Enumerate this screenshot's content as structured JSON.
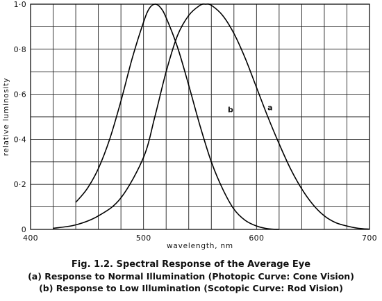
{
  "chart_data": {
    "type": "line",
    "xlabel": "wavelength, nm",
    "ylabel": "relative luminosity",
    "xlim": [
      400,
      700
    ],
    "ylim": [
      0,
      1.0
    ],
    "x_ticks": [
      400,
      500,
      600,
      700
    ],
    "x_tick_labels": [
      "400",
      "500",
      "600",
      "700"
    ],
    "y_ticks": [
      0,
      0.2,
      0.4,
      0.6,
      0.8,
      1.0
    ],
    "y_tick_labels": [
      "0",
      "0·2",
      "0·4",
      "0·6",
      "0·8",
      "1·0"
    ],
    "x_grid_step": 20,
    "y_grid_step": 0.1,
    "grid": true,
    "series": [
      {
        "name": "a",
        "x": [
          420,
          440,
          460,
          480,
          500,
          510,
          520,
          530,
          540,
          550,
          555,
          560,
          570,
          580,
          590,
          600,
          610,
          620,
          630,
          640,
          650,
          660,
          670,
          680,
          690,
          700
        ],
        "y": [
          0.005,
          0.02,
          0.06,
          0.14,
          0.32,
          0.5,
          0.7,
          0.86,
          0.95,
          0.995,
          1.0,
          0.995,
          0.95,
          0.87,
          0.76,
          0.63,
          0.5,
          0.38,
          0.27,
          0.18,
          0.11,
          0.06,
          0.03,
          0.015,
          0.005,
          0.001
        ]
      },
      {
        "name": "b",
        "x": [
          440,
          450,
          460,
          470,
          480,
          490,
          500,
          505,
          510,
          515,
          520,
          530,
          540,
          550,
          560,
          570,
          580,
          590,
          600,
          610,
          620
        ],
        "y": [
          0.12,
          0.18,
          0.27,
          0.4,
          0.57,
          0.76,
          0.92,
          0.98,
          1.0,
          0.985,
          0.94,
          0.81,
          0.64,
          0.46,
          0.3,
          0.18,
          0.09,
          0.04,
          0.015,
          0.003,
          0.0
        ]
      }
    ],
    "curve_labels": [
      {
        "text": "a",
        "x": 612,
        "y": 0.53
      },
      {
        "text": "b",
        "x": 577,
        "y": 0.52
      }
    ]
  },
  "caption": {
    "title": "Fig. 1.2.  Spectral Response of the Average Eye",
    "line_a": "(a) Response to Normal Illumination (Photopic Curve:  Cone Vision)",
    "line_b": "(b) Response to Low Illumination (Scotopic Curve:  Rod Vision)"
  }
}
